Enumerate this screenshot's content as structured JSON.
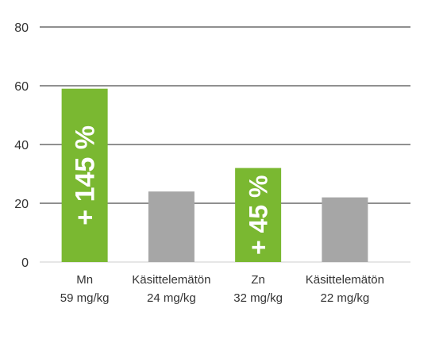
{
  "chart_data": {
    "type": "bar",
    "title": "",
    "xlabel": "",
    "ylabel": "",
    "ylim": [
      0,
      80
    ],
    "yticks": [
      0,
      20,
      40,
      60,
      80
    ],
    "grid": true,
    "bars": [
      {
        "name": "Mn",
        "sublabel": "59 mg/kg",
        "value": 59,
        "color": "#7ab831",
        "annotation": "+ 145 %"
      },
      {
        "name": "Käsittelemätön",
        "sublabel": "24 mg/kg",
        "value": 24,
        "color": "#a6a6a6",
        "annotation": ""
      },
      {
        "name": "Zn",
        "sublabel": "32 mg/kg",
        "value": 32,
        "color": "#7ab831",
        "annotation": "+ 45 %"
      },
      {
        "name": "Käsittelemätön",
        "sublabel": "22 mg/kg",
        "value": 22,
        "color": "#a6a6a6",
        "annotation": ""
      }
    ]
  }
}
